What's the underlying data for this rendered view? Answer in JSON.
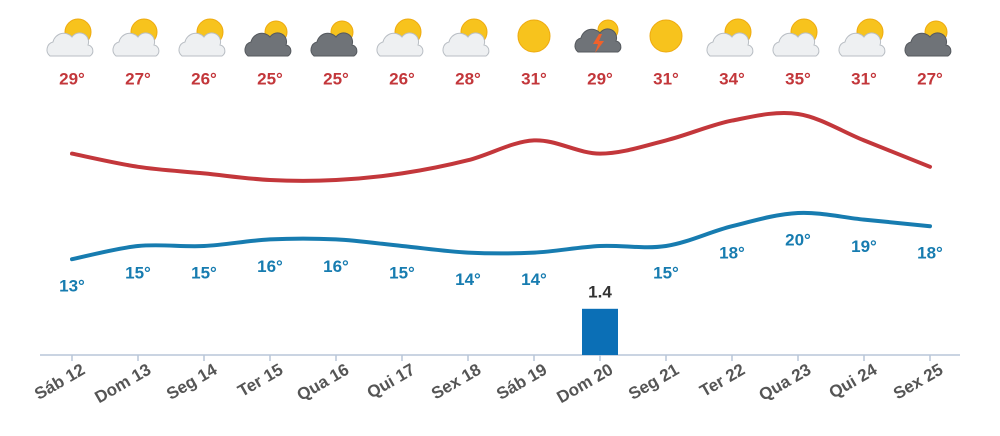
{
  "chart_data": {
    "type": "weather",
    "categories": [
      "Sáb 12",
      "Dom 13",
      "Seg 14",
      "Ter 15",
      "Qua 16",
      "Qui 17",
      "Sex 18",
      "Sáb 19",
      "Dom 20",
      "Seg 21",
      "Ter 22",
      "Qua 23",
      "Qui 24",
      "Sex 25"
    ],
    "icons": [
      "sun-cloud",
      "sun-cloud",
      "sun-cloud",
      "dark-cloud",
      "dark-cloud",
      "sun-cloud",
      "sun-cloud",
      "sun",
      "storm",
      "sun",
      "sun-cloud",
      "sun-cloud",
      "sun-cloud",
      "dark-cloud"
    ],
    "series": [
      {
        "name": "max",
        "color": "#c3373b",
        "values": [
          29,
          27,
          26,
          25,
          25,
          26,
          28,
          31,
          29,
          31,
          34,
          35,
          31,
          27
        ],
        "value_labels": [
          "29°",
          "27°",
          "26°",
          "25°",
          "25°",
          "26°",
          "28°",
          "31°",
          "29°",
          "31°",
          "34°",
          "35°",
          "31°",
          "27°"
        ]
      },
      {
        "name": "min",
        "color": "#177cb0",
        "values": [
          13,
          15,
          15,
          16,
          16,
          15,
          14,
          14,
          15,
          15,
          18,
          20,
          19,
          18
        ],
        "value_labels": [
          "13°",
          "15°",
          "15°",
          "16°",
          "16°",
          "15°",
          "14°",
          "14°",
          null,
          "15°",
          "18°",
          "20°",
          "19°",
          "18°"
        ]
      }
    ],
    "precipitation": {
      "color": "#0b6fb6",
      "values": [
        0,
        0,
        0,
        0,
        0,
        0,
        0,
        0,
        1.4,
        0,
        0,
        0,
        0,
        0
      ]
    }
  }
}
